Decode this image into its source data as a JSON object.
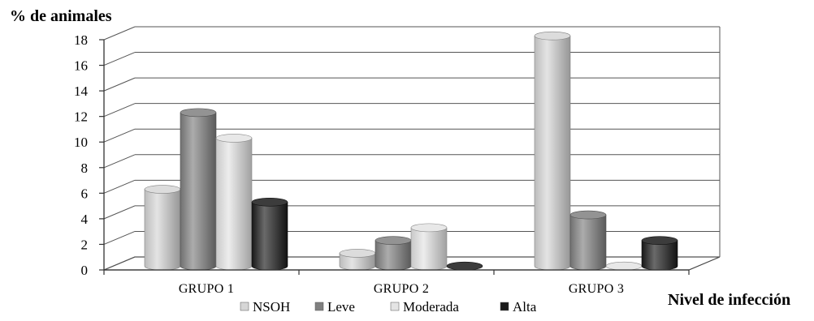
{
  "chart_data": {
    "type": "bar",
    "ylabel": "% de animales",
    "xlabel": "Nivel de infección",
    "ylim": [
      0,
      18
    ],
    "yticks": [
      0,
      2,
      4,
      6,
      8,
      10,
      12,
      14,
      16,
      18
    ],
    "grid": true,
    "legend_position": "bottom",
    "categories": [
      "GRUPO 1",
      "GRUPO 2",
      "GRUPO 3"
    ],
    "series": [
      {
        "name": "NSOH",
        "values": [
          6,
          1,
          18
        ],
        "color": "#d6d6d6"
      },
      {
        "name": "Leve",
        "values": [
          12,
          2,
          4
        ],
        "color": "#808080"
      },
      {
        "name": "Moderada",
        "values": [
          10,
          3,
          0
        ],
        "color": "#e4e4e4"
      },
      {
        "name": "Alta",
        "values": [
          5,
          0,
          2
        ],
        "color": "#1a1a1a"
      }
    ]
  }
}
